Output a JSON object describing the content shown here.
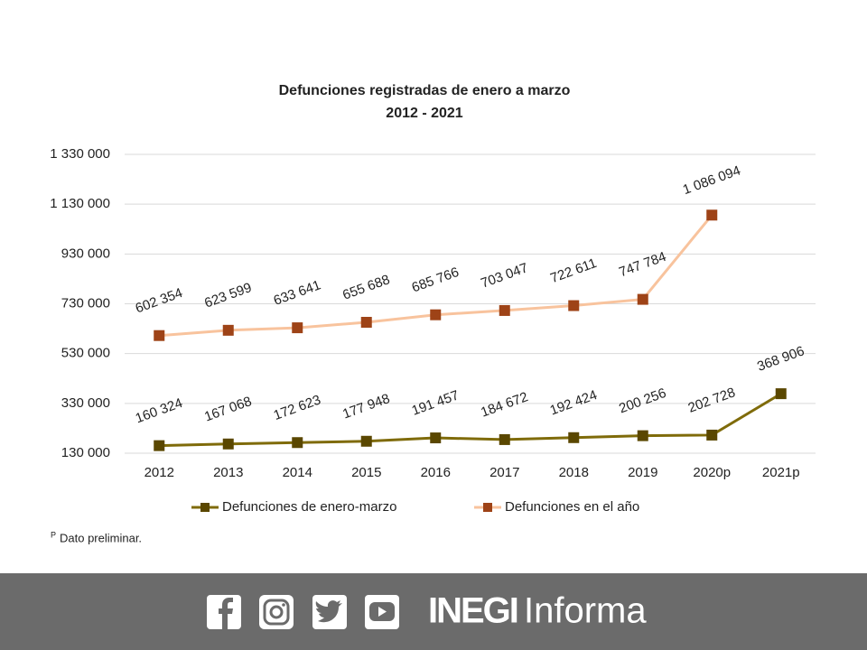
{
  "chart_data": {
    "type": "line",
    "title": "Defunciones registradas de enero a marzo",
    "subtitle": "2012 - 2021",
    "categories": [
      "2012",
      "2013",
      "2014",
      "2015",
      "2016",
      "2017",
      "2018",
      "2019",
      "2020p",
      "2021p"
    ],
    "series": [
      {
        "name": "Defunciones de enero-marzo",
        "color": "#7f6b0a",
        "marker_color": "#5a4700",
        "values": [
          160324,
          167068,
          172623,
          177948,
          191457,
          184672,
          192424,
          200256,
          202728,
          368906
        ],
        "value_labels": [
          "160 324",
          "167 068",
          "172 623",
          "177 948",
          "191 457",
          "184 672",
          "192 424",
          "200 256",
          "202 728",
          "368 906"
        ]
      },
      {
        "name": "Defunciones en el año",
        "color": "#f8c39d",
        "marker_color": "#9e4317",
        "values": [
          602354,
          623599,
          633641,
          655688,
          685766,
          703047,
          722611,
          747784,
          1086094,
          null
        ],
        "value_labels": [
          "602 354",
          "623 599",
          "633 641",
          "655 688",
          "685 766",
          "703 047",
          "722 611",
          "747 784",
          "1 086 094",
          null
        ]
      }
    ],
    "ylim": [
      130000,
      1330000
    ],
    "yticks": [
      {
        "value": 130000,
        "label": "130 000"
      },
      {
        "value": 330000,
        "label": "330 000"
      },
      {
        "value": 530000,
        "label": "530 000"
      },
      {
        "value": 730000,
        "label": "730 000"
      },
      {
        "value": 930000,
        "label": "930 000"
      },
      {
        "value": 1130000,
        "label": "1 130 000"
      },
      {
        "value": 1330000,
        "label": "1 330 000"
      }
    ],
    "grid": true,
    "legend": "bottom",
    "footnote": {
      "mark": "P",
      "text": "Dato preliminar."
    }
  },
  "footer": {
    "brand": "INEGI",
    "product": "Informa"
  }
}
